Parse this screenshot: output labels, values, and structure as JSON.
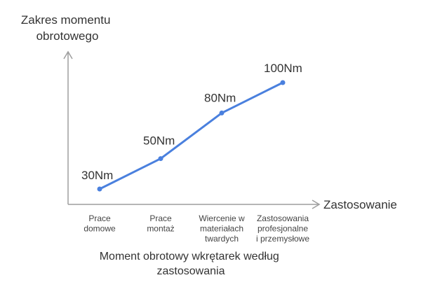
{
  "chart_data": {
    "type": "line",
    "title": "Moment obrotowy wkrętarek według zastosowania",
    "title_lines": [
      "Moment obrotowy wkrętarek według",
      "zastosowania"
    ],
    "ylabel": "Zakres momentu obrotowego",
    "ylabel_lines": [
      "Zakres momentu",
      "obrotowego"
    ],
    "xlabel": "Zastosowanie",
    "categories": [
      "Prace domowe",
      "Prace montaż",
      "Wiercenie w materiałach twardych",
      "Zastosowania profesjonalne i przemysłowe"
    ],
    "category_lines": [
      [
        "Prace",
        "domowe"
      ],
      [
        "Prace",
        "montaż"
      ],
      [
        "Wiercenie w",
        "materiałach",
        "twardych"
      ],
      [
        "Zastosowania",
        "profesjonalne",
        "i przemysłowe"
      ]
    ],
    "series": [
      {
        "values": [
          30,
          50,
          80,
          100
        ],
        "data_labels": [
          "30Nm",
          "50Nm",
          "80Nm",
          "100Nm"
        ],
        "color": "#4a80de"
      }
    ],
    "axis_color": "#9e9e9e",
    "grid": false,
    "legend": "none"
  }
}
